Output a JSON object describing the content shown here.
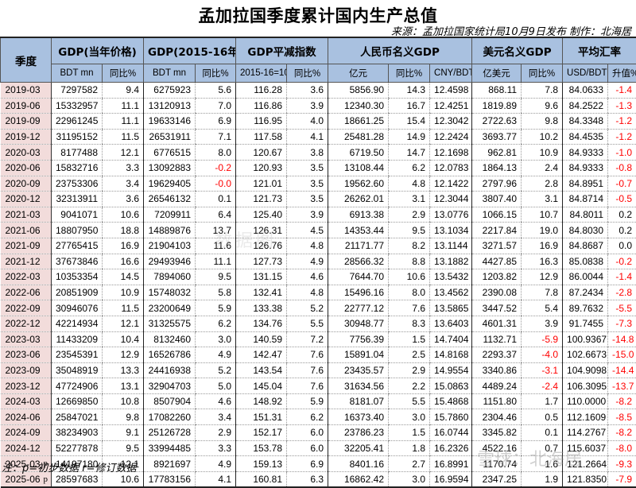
{
  "title": "孟加拉国季度累计国内生产总值",
  "source": "来源：孟加拉国家统计局10月9日发布  制作：北海居",
  "note": "注：p=初步数据  r=修订数据",
  "watermark": "雪球：北海居",
  "watermark_center": "数据图",
  "headers": {
    "quarter": "季度",
    "groups": [
      "GDP(当年价格)",
      "GDP(2015-16年价)",
      "GDP平减指数",
      "人民币名义GDP",
      "美元名义GDP",
      "平均汇率"
    ],
    "sub": [
      "BDT mn",
      "同比%",
      "BDT mn",
      "同比%",
      "2015-16=100",
      "同比%",
      "亿元",
      "同比%",
      "CNY/BDT",
      "亿美元",
      "同比%",
      "USD/BDT",
      "升值%"
    ]
  },
  "colors": {
    "header_bg": "#a9c1e0",
    "quarter_bg": "#f2dcdb",
    "negative": "#ff0000"
  },
  "rows": [
    {
      "q": "2019-03",
      "flag": "",
      "v": [
        "7297582",
        "9.4",
        "6275923",
        "5.6",
        "116.28",
        "3.6",
        "5856.90",
        "14.3",
        "12.4598",
        "868.11",
        "7.8",
        "84.0633",
        "-1.4"
      ]
    },
    {
      "q": "2019-06",
      "flag": "",
      "v": [
        "15332957",
        "11.1",
        "13120913",
        "7.0",
        "116.86",
        "3.9",
        "12340.30",
        "16.7",
        "12.4251",
        "1819.89",
        "9.6",
        "84.2522",
        "-1.3"
      ]
    },
    {
      "q": "2019-09",
      "flag": "",
      "v": [
        "22961245",
        "11.1",
        "19633146",
        "6.9",
        "116.95",
        "4.0",
        "18661.25",
        "15.4",
        "12.3042",
        "2722.63",
        "9.8",
        "84.3348",
        "-1.2"
      ]
    },
    {
      "q": "2019-12",
      "flag": "",
      "v": [
        "31195152",
        "11.5",
        "26531911",
        "7.1",
        "117.58",
        "4.1",
        "25481.28",
        "14.9",
        "12.2424",
        "3693.77",
        "10.2",
        "84.4535",
        "-1.2"
      ]
    },
    {
      "q": "2020-03",
      "flag": "",
      "v": [
        "8177488",
        "12.1",
        "6776515",
        "8.0",
        "120.67",
        "3.8",
        "6719.50",
        "14.7",
        "12.1698",
        "962.81",
        "10.9",
        "84.9333",
        "-1.0"
      ]
    },
    {
      "q": "2020-06",
      "flag": "",
      "v": [
        "15832716",
        "3.3",
        "13092883",
        "-0.2",
        "120.93",
        "3.5",
        "13108.44",
        "6.2",
        "12.0783",
        "1864.13",
        "2.4",
        "84.9333",
        "-0.8"
      ]
    },
    {
      "q": "2020-09",
      "flag": "",
      "v": [
        "23753306",
        "3.4",
        "19629405",
        "-0.0",
        "121.01",
        "3.5",
        "19562.60",
        "4.8",
        "12.1422",
        "2797.96",
        "2.8",
        "84.8951",
        "-0.7"
      ]
    },
    {
      "q": "2020-12",
      "flag": "",
      "v": [
        "32313911",
        "3.6",
        "26546132",
        "0.1",
        "121.73",
        "3.5",
        "26262.01",
        "3.1",
        "12.3044",
        "3807.40",
        "3.1",
        "84.8714",
        "-0.5"
      ]
    },
    {
      "q": "2021-03",
      "flag": "",
      "v": [
        "9041071",
        "10.6",
        "7209911",
        "6.4",
        "125.40",
        "3.9",
        "6913.38",
        "2.9",
        "13.0776",
        "1066.15",
        "10.7",
        "84.8011",
        "0.2"
      ]
    },
    {
      "q": "2021-06",
      "flag": "",
      "v": [
        "18807950",
        "18.8",
        "14889876",
        "13.7",
        "126.31",
        "4.5",
        "14353.44",
        "9.5",
        "13.1034",
        "2217.84",
        "19.0",
        "84.8030",
        "0.2"
      ]
    },
    {
      "q": "2021-09",
      "flag": "",
      "v": [
        "27765415",
        "16.9",
        "21904103",
        "11.6",
        "126.76",
        "4.8",
        "21171.77",
        "8.2",
        "13.1144",
        "3271.57",
        "16.9",
        "84.8687",
        "0.0"
      ]
    },
    {
      "q": "2021-12",
      "flag": "",
      "v": [
        "37673846",
        "16.6",
        "29493946",
        "11.1",
        "127.73",
        "4.9",
        "28566.32",
        "8.8",
        "13.1882",
        "4427.85",
        "16.3",
        "85.0838",
        "-0.2"
      ]
    },
    {
      "q": "2022-03",
      "flag": "",
      "v": [
        "10353354",
        "14.5",
        "7894060",
        "9.5",
        "131.15",
        "4.6",
        "7644.70",
        "10.6",
        "13.5432",
        "1203.82",
        "12.9",
        "86.0044",
        "-1.4"
      ]
    },
    {
      "q": "2022-06",
      "flag": "",
      "v": [
        "20851909",
        "10.9",
        "15748032",
        "5.8",
        "132.41",
        "4.8",
        "15496.16",
        "8.0",
        "13.4562",
        "2390.08",
        "7.8",
        "87.2434",
        "-2.8"
      ]
    },
    {
      "q": "2022-09",
      "flag": "",
      "v": [
        "30946076",
        "11.5",
        "23200649",
        "5.9",
        "133.38",
        "5.2",
        "22777.12",
        "7.6",
        "13.5865",
        "3447.52",
        "5.4",
        "89.7632",
        "-5.5"
      ]
    },
    {
      "q": "2022-12",
      "flag": "",
      "v": [
        "42214934",
        "12.1",
        "31325575",
        "6.2",
        "134.76",
        "5.5",
        "30948.77",
        "8.3",
        "13.6403",
        "4601.31",
        "3.9",
        "91.7455",
        "-7.3"
      ]
    },
    {
      "q": "2023-03",
      "flag": "",
      "v": [
        "11433209",
        "10.4",
        "8132460",
        "3.0",
        "140.59",
        "7.2",
        "7756.39",
        "1.5",
        "14.7404",
        "1132.71",
        "-5.9",
        "100.9367",
        "-14.8"
      ]
    },
    {
      "q": "2023-06",
      "flag": "",
      "v": [
        "23545391",
        "12.9",
        "16526786",
        "4.9",
        "142.47",
        "7.6",
        "15891.04",
        "2.5",
        "14.8168",
        "2293.37",
        "-4.0",
        "102.6673",
        "-15.0"
      ]
    },
    {
      "q": "2023-09",
      "flag": "",
      "v": [
        "35048919",
        "13.3",
        "24416938",
        "5.2",
        "143.54",
        "7.6",
        "23435.57",
        "2.9",
        "14.9554",
        "3340.86",
        "-3.1",
        "104.9098",
        "-14.4"
      ]
    },
    {
      "q": "2023-12",
      "flag": "",
      "v": [
        "47724906",
        "13.1",
        "32904703",
        "5.0",
        "145.04",
        "7.6",
        "31634.56",
        "2.2",
        "15.0863",
        "4489.24",
        "-2.4",
        "106.3095",
        "-13.7"
      ]
    },
    {
      "q": "2024-03",
      "flag": "",
      "v": [
        "12669850",
        "10.8",
        "8507904",
        "4.6",
        "148.92",
        "5.9",
        "8181.07",
        "5.5",
        "15.4868",
        "1151.80",
        "1.7",
        "110.0000",
        "-8.2"
      ]
    },
    {
      "q": "2024-06",
      "flag": "",
      "v": [
        "25847021",
        "9.8",
        "17082260",
        "3.4",
        "151.31",
        "6.2",
        "16373.40",
        "3.0",
        "15.7860",
        "2304.46",
        "0.5",
        "112.1609",
        "-8.5"
      ]
    },
    {
      "q": "2024-09",
      "flag": "",
      "v": [
        "38234903",
        "9.1",
        "25126728",
        "2.9",
        "152.17",
        "6.0",
        "23786.23",
        "1.5",
        "16.0744",
        "3345.82",
        "0.1",
        "114.2767",
        "-8.2"
      ]
    },
    {
      "q": "2024-12",
      "flag": "",
      "v": [
        "52277878",
        "9.5",
        "33994485",
        "3.3",
        "153.78",
        "6.0",
        "32205.41",
        "1.8",
        "16.2326",
        "4522.16",
        "0.7",
        "115.6037",
        "-8.0"
      ]
    },
    {
      "q": "2025-03",
      "flag": "p",
      "v": [
        "14197180",
        "12.1",
        "8921697",
        "4.9",
        "159.13",
        "6.9",
        "8401.16",
        "2.7",
        "16.8991",
        "1170.74",
        "1.6",
        "121.2664",
        "-9.3"
      ]
    },
    {
      "q": "2025-06",
      "flag": "p",
      "v": [
        "28597683",
        "10.6",
        "17783156",
        "4.1",
        "160.81",
        "6.3",
        "16862.42",
        "3.0",
        "16.9594",
        "2347.25",
        "1.9",
        "121.8350",
        "-7.9"
      ]
    }
  ]
}
